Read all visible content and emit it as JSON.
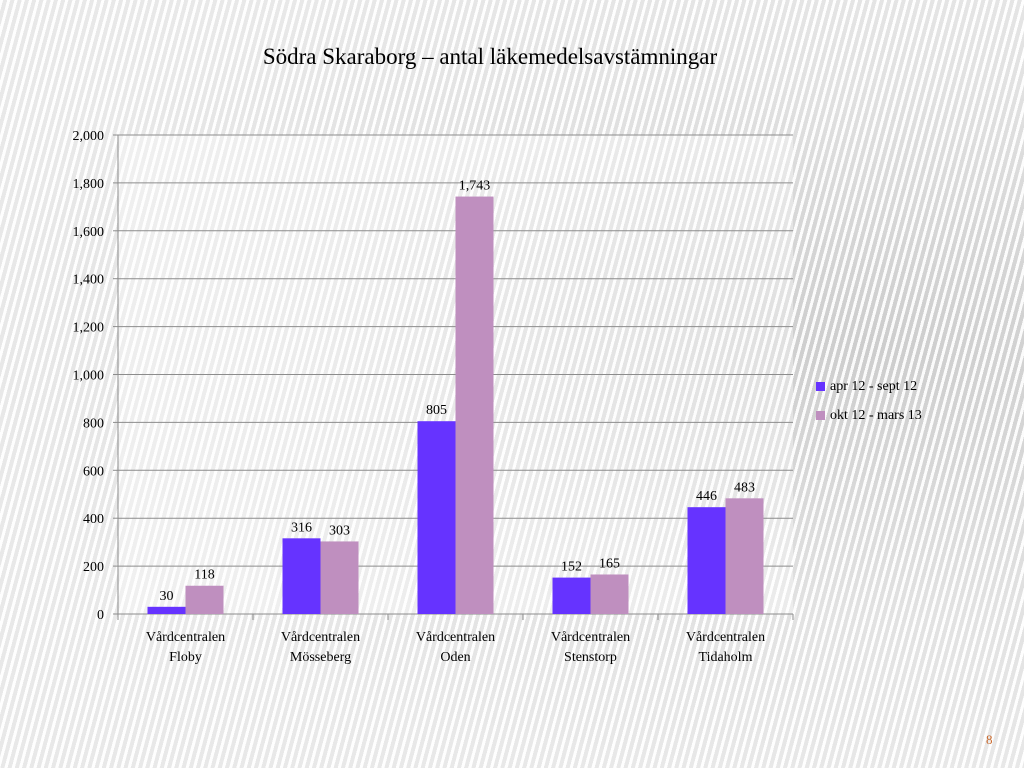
{
  "page_number": "8",
  "chart_data": {
    "type": "bar",
    "title": "Södra Skaraborg – antal läkemedelsavstämningar",
    "categories": [
      [
        "Vårdcentralen",
        "Floby"
      ],
      [
        "Vårdcentralen",
        "Mösseberg"
      ],
      [
        "Vårdcentralen",
        "Oden"
      ],
      [
        "Vårdcentralen",
        "Stenstorp"
      ],
      [
        "Vårdcentralen",
        "Tidaholm"
      ]
    ],
    "series": [
      {
        "name": "apr 12 - sept 12",
        "color": "#6633ff",
        "values": [
          30,
          316,
          805,
          152,
          446
        ]
      },
      {
        "name": "okt 12 - mars 13",
        "color": "#bf8fbf",
        "values": [
          118,
          303,
          1743,
          165,
          483
        ]
      }
    ],
    "ylim": [
      0,
      2000
    ],
    "yticks": [
      "0",
      "200",
      "400",
      "600",
      "800",
      "1,000",
      "1,200",
      "1,400",
      "1,600",
      "1,800",
      "2,000"
    ],
    "grid": true,
    "legend": "right",
    "xlabel": "",
    "ylabel": ""
  }
}
